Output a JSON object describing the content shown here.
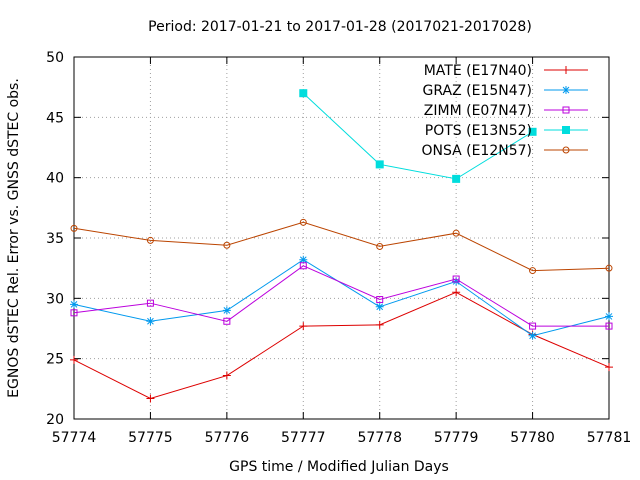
{
  "chart_data": {
    "type": "line",
    "title": "Period: 2017-01-21 to 2017-01-28 (2017021-2017028)",
    "xlabel": "GPS time / Modified Julian Days",
    "ylabel": "EGNOS dSTEC Rel. Error vs. GNSS dSTEC obs.",
    "xlim": [
      57774,
      57781
    ],
    "ylim": [
      20,
      50
    ],
    "x_ticks": [
      "57774",
      "57775",
      "57776",
      "57777",
      "57778",
      "57779",
      "57780",
      "57781"
    ],
    "y_ticks": [
      "20",
      "25",
      "30",
      "35",
      "40",
      "45",
      "50"
    ],
    "grid": true,
    "legend_position": "top-right",
    "series": [
      {
        "name": "MATE (E17N40)",
        "color": "#dd0000",
        "marker": "plus",
        "x": [
          57774,
          57775,
          57776,
          57777,
          57778,
          57779,
          57780,
          57781
        ],
        "values": [
          24.9,
          21.7,
          23.6,
          27.7,
          27.8,
          30.5,
          27.0,
          24.3
        ]
      },
      {
        "name": "GRAZ (E15N47)",
        "color": "#0099ee",
        "marker": "star",
        "x": [
          57774,
          57775,
          57776,
          57777,
          57778,
          57779,
          57780,
          57781
        ],
        "values": [
          29.5,
          28.1,
          29.0,
          33.2,
          29.3,
          31.4,
          26.9,
          28.5
        ]
      },
      {
        "name": "ZIMM (E07N47)",
        "color": "#bb00dd",
        "marker": "square-open",
        "x": [
          57774,
          57775,
          57776,
          57777,
          57778,
          57779,
          57780,
          57781
        ],
        "values": [
          28.8,
          29.6,
          28.1,
          32.7,
          29.9,
          31.6,
          27.7,
          27.7
        ]
      },
      {
        "name": "POTS (E13N52)",
        "color": "#00dddd",
        "marker": "square-filled",
        "x": [
          57777,
          57778,
          57779,
          57780
        ],
        "values": [
          47.0,
          41.1,
          39.9,
          43.8
        ]
      },
      {
        "name": "ONSA (E12N57)",
        "color": "#bb4400",
        "marker": "circle-open",
        "x": [
          57774,
          57775,
          57776,
          57777,
          57778,
          57779,
          57780,
          57781
        ],
        "values": [
          35.8,
          34.8,
          34.4,
          36.3,
          34.3,
          35.4,
          32.3,
          32.5
        ]
      }
    ]
  }
}
